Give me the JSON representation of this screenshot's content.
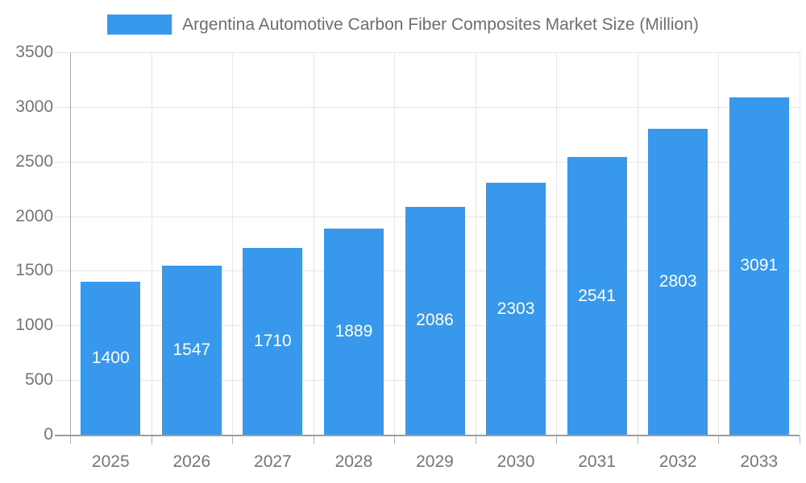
{
  "chart_data": {
    "type": "bar",
    "title": "Argentina Automotive Carbon Fiber Composites Market Size (Million)",
    "legend": "Argentina Automotive Carbon Fiber Composites Market Size (Million)",
    "legend_position": "top",
    "categories": [
      "2025",
      "2026",
      "2027",
      "2028",
      "2029",
      "2030",
      "2031",
      "2032",
      "2033"
    ],
    "values": [
      1400,
      1547,
      1710,
      1889,
      2086,
      2303,
      2541,
      2803,
      3091
    ],
    "bar_labels": [
      "1400",
      "1547",
      "1710",
      "1889",
      "2086",
      "2303",
      "2541",
      "2803",
      "3091"
    ],
    "bar_label_position": "center-of-bar",
    "xlabel": "",
    "ylabel": "",
    "ylim": [
      0,
      3500
    ],
    "ytick_step": 500,
    "yticks": [
      "0",
      "500",
      "1000",
      "1500",
      "2000",
      "2500",
      "3000",
      "3500"
    ],
    "grid": true,
    "colors": {
      "bar": "#3898ec",
      "bar_label": "#ffffff",
      "axis_text": "#757575",
      "legend_text": "#6e6e6e",
      "grid_line": "#e6e6e6",
      "x_axis_line": "#9e9e9e",
      "y_axis_line": "#a9a9a9",
      "tick": "#b3b3b3",
      "background": "#ffffff"
    }
  }
}
